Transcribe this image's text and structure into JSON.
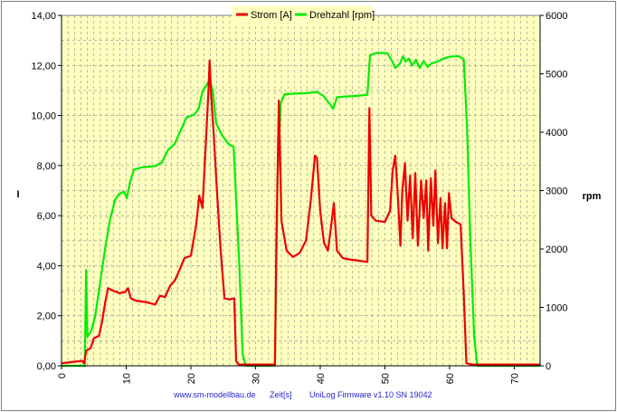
{
  "chart_data": {
    "type": "line",
    "legend_position": "top-center",
    "grid": true,
    "plot_background": "#ffffc0",
    "xlim": [
      0,
      74
    ],
    "x_ticks": [
      0,
      10,
      20,
      30,
      40,
      50,
      60,
      70
    ],
    "y_left": {
      "label": "I",
      "lim": [
        0,
        14
      ],
      "ticks": [
        "0,00",
        "2,00",
        "4,00",
        "6,00",
        "8,00",
        "10,00",
        "12,00",
        "14,00"
      ]
    },
    "y_right": {
      "label": "rpm",
      "lim": [
        0,
        6000
      ],
      "ticks": [
        "0",
        "1000",
        "2000",
        "3000",
        "4000",
        "5000",
        "6000"
      ]
    },
    "footer": {
      "website": "www.sm-modellbau.de",
      "xlabel": "Zeit[s]",
      "firmware": "UniLog Firmware v1.10 SN 19042"
    },
    "series": [
      {
        "name": "Strom [A]",
        "axis": "left",
        "color": "#ee0000",
        "points": [
          [
            0,
            0.1
          ],
          [
            1.5,
            0.15
          ],
          [
            3.2,
            0.2
          ],
          [
            3.5,
            0.1
          ],
          [
            3.8,
            0.6
          ],
          [
            4.5,
            0.7
          ],
          [
            5,
            1.1
          ],
          [
            5.8,
            1.2
          ],
          [
            6.3,
            1.8
          ],
          [
            6.8,
            2.6
          ],
          [
            7.2,
            3.1
          ],
          [
            8,
            3.0
          ],
          [
            9,
            2.9
          ],
          [
            9.8,
            2.95
          ],
          [
            10.3,
            3.1
          ],
          [
            10.7,
            2.7
          ],
          [
            11.5,
            2.6
          ],
          [
            13,
            2.55
          ],
          [
            14.5,
            2.45
          ],
          [
            15.2,
            2.8
          ],
          [
            16,
            2.75
          ],
          [
            16.8,
            3.2
          ],
          [
            17.5,
            3.4
          ],
          [
            18.2,
            3.8
          ],
          [
            19,
            4.3
          ],
          [
            20,
            4.4
          ],
          [
            20.8,
            5.6
          ],
          [
            21.3,
            6.8
          ],
          [
            21.8,
            6.3
          ],
          [
            22.3,
            8.8
          ],
          [
            22.7,
            10.9
          ],
          [
            22.9,
            12.2
          ],
          [
            23.1,
            11.0
          ],
          [
            23.5,
            9.4
          ],
          [
            24,
            7.1
          ],
          [
            24.6,
            4.6
          ],
          [
            25.2,
            2.7
          ],
          [
            26,
            2.65
          ],
          [
            26.7,
            2.7
          ],
          [
            27,
            0.2
          ],
          [
            27.4,
            0.05
          ],
          [
            33,
            0.05
          ],
          [
            33.2,
            4.5
          ],
          [
            33.6,
            10.6
          ],
          [
            34,
            5.8
          ],
          [
            34.8,
            4.6
          ],
          [
            35.8,
            4.35
          ],
          [
            36.8,
            4.5
          ],
          [
            37.8,
            5.0
          ],
          [
            38.5,
            6.5
          ],
          [
            39.2,
            8.4
          ],
          [
            39.5,
            8.3
          ],
          [
            40,
            6.2
          ],
          [
            40.6,
            4.9
          ],
          [
            41.2,
            4.6
          ],
          [
            41.7,
            5.6
          ],
          [
            42.1,
            6.5
          ],
          [
            42.6,
            4.6
          ],
          [
            43.5,
            4.3
          ],
          [
            44.5,
            4.25
          ],
          [
            46,
            4.2
          ],
          [
            47.3,
            4.15
          ],
          [
            47.6,
            10.3
          ],
          [
            47.9,
            6.0
          ],
          [
            48.6,
            5.8
          ],
          [
            50,
            5.75
          ],
          [
            50.8,
            6.2
          ],
          [
            51.2,
            7.8
          ],
          [
            51.6,
            8.4
          ],
          [
            52,
            6.8
          ],
          [
            52.4,
            4.8
          ],
          [
            52.7,
            7.0
          ],
          [
            53.1,
            8.1
          ],
          [
            53.5,
            5.8
          ],
          [
            53.9,
            7.6
          ],
          [
            54.3,
            5.1
          ],
          [
            54.7,
            7.7
          ],
          [
            55.1,
            4.8
          ],
          [
            55.6,
            7.4
          ],
          [
            56,
            5.9
          ],
          [
            56.4,
            7.4
          ],
          [
            56.7,
            4.6
          ],
          [
            57.1,
            7.5
          ],
          [
            57.5,
            5.6
          ],
          [
            57.8,
            7.8
          ],
          [
            58.2,
            4.9
          ],
          [
            58.6,
            6.7
          ],
          [
            58.9,
            4.7
          ],
          [
            59.3,
            6.5
          ],
          [
            59.6,
            4.7
          ],
          [
            59.9,
            6.9
          ],
          [
            60.3,
            5.9
          ],
          [
            61,
            5.75
          ],
          [
            61.7,
            5.65
          ],
          [
            62.2,
            2.9
          ],
          [
            62.6,
            0.1
          ],
          [
            63.5,
            0.05
          ],
          [
            74,
            0.05
          ]
        ]
      },
      {
        "name": "Drehzahl [rpm]",
        "axis": "right",
        "color": "#00ee00",
        "points": [
          [
            0,
            0
          ],
          [
            3.6,
            0
          ],
          [
            3.8,
            1640
          ],
          [
            4,
            500
          ],
          [
            4.6,
            600
          ],
          [
            5.2,
            850
          ],
          [
            6,
            1450
          ],
          [
            6.8,
            2050
          ],
          [
            7.5,
            2500
          ],
          [
            8.3,
            2850
          ],
          [
            9,
            2950
          ],
          [
            9.7,
            2980
          ],
          [
            10.1,
            2870
          ],
          [
            10.6,
            3150
          ],
          [
            11.2,
            3360
          ],
          [
            12.5,
            3400
          ],
          [
            14.5,
            3420
          ],
          [
            15.5,
            3480
          ],
          [
            16.5,
            3700
          ],
          [
            17.5,
            3800
          ],
          [
            18.3,
            4000
          ],
          [
            19.3,
            4250
          ],
          [
            20.5,
            4300
          ],
          [
            21.2,
            4400
          ],
          [
            21.8,
            4700
          ],
          [
            22.4,
            4800
          ],
          [
            22.9,
            4900
          ],
          [
            23.4,
            4700
          ],
          [
            23.9,
            4150
          ],
          [
            24.8,
            3950
          ],
          [
            25.8,
            3800
          ],
          [
            26.6,
            3750
          ],
          [
            27.5,
            1700
          ],
          [
            28,
            200
          ],
          [
            28.5,
            0
          ],
          [
            33,
            0
          ],
          [
            33.4,
            3200
          ],
          [
            33.9,
            4500
          ],
          [
            34.5,
            4650
          ],
          [
            36,
            4660
          ],
          [
            38,
            4670
          ],
          [
            39.5,
            4690
          ],
          [
            40.5,
            4620
          ],
          [
            41.5,
            4480
          ],
          [
            42,
            4400
          ],
          [
            42.6,
            4600
          ],
          [
            43.6,
            4610
          ],
          [
            45.5,
            4620
          ],
          [
            47.3,
            4640
          ],
          [
            47.7,
            5320
          ],
          [
            48.8,
            5360
          ],
          [
            50.4,
            5350
          ],
          [
            51.2,
            5200
          ],
          [
            51.6,
            5100
          ],
          [
            52.3,
            5170
          ],
          [
            52.8,
            5300
          ],
          [
            53.2,
            5210
          ],
          [
            53.7,
            5260
          ],
          [
            54.2,
            5140
          ],
          [
            54.8,
            5240
          ],
          [
            55.4,
            5100
          ],
          [
            56,
            5220
          ],
          [
            56.6,
            5120
          ],
          [
            57.2,
            5180
          ],
          [
            58,
            5200
          ],
          [
            58.8,
            5250
          ],
          [
            59.6,
            5280
          ],
          [
            60.5,
            5300
          ],
          [
            61.5,
            5300
          ],
          [
            62.2,
            5250
          ],
          [
            62.7,
            4100
          ],
          [
            63.2,
            2200
          ],
          [
            63.8,
            500
          ],
          [
            64.3,
            0
          ],
          [
            74,
            0
          ]
        ]
      }
    ]
  }
}
